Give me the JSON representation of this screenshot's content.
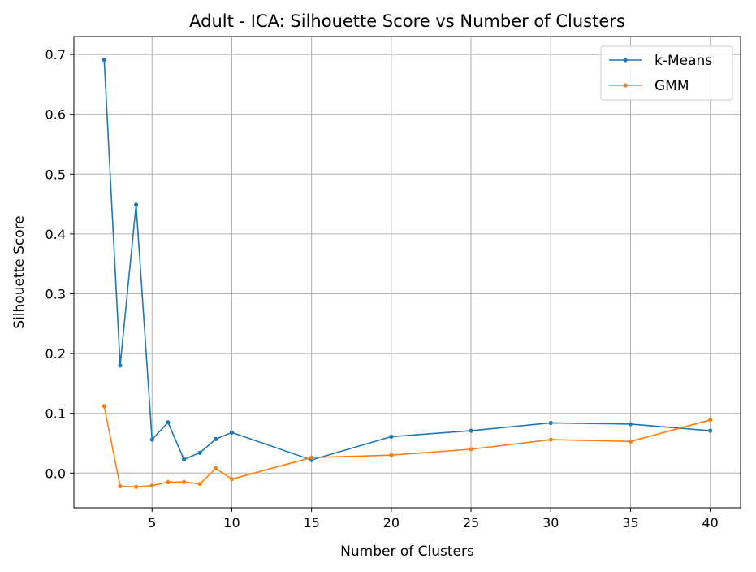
{
  "chart_data": {
    "type": "line",
    "title": "Adult - ICA: Silhouette Score vs Number of Clusters",
    "xlabel": "Number of Clusters",
    "ylabel": "Silhouette Score",
    "xlim": [
      0.1,
      41.9
    ],
    "ylim": [
      -0.058,
      0.73
    ],
    "xticks": [
      5,
      10,
      15,
      20,
      25,
      30,
      35,
      40
    ],
    "yticks": [
      0.0,
      0.1,
      0.2,
      0.3,
      0.4,
      0.5,
      0.6,
      0.7
    ],
    "ytick_labels": [
      "0.0",
      "0.1",
      "0.2",
      "0.3",
      "0.4",
      "0.5",
      "0.6",
      "0.7"
    ],
    "grid": true,
    "legend_position": "top-right",
    "x": [
      2,
      3,
      4,
      5,
      6,
      7,
      8,
      9,
      10,
      15,
      20,
      25,
      30,
      35,
      40
    ],
    "series": [
      {
        "name": "k-Means",
        "color": "#1f77b4",
        "values": [
          0.691,
          0.18,
          0.449,
          0.056,
          0.085,
          0.023,
          0.034,
          0.057,
          0.068,
          0.022,
          0.061,
          0.071,
          0.084,
          0.082,
          0.071
        ]
      },
      {
        "name": "GMM",
        "color": "#ff7f0e",
        "values": [
          0.112,
          -0.022,
          -0.023,
          -0.021,
          -0.015,
          -0.015,
          -0.018,
          0.008,
          -0.01,
          0.026,
          0.03,
          0.04,
          0.056,
          0.053,
          0.089
        ]
      }
    ]
  }
}
